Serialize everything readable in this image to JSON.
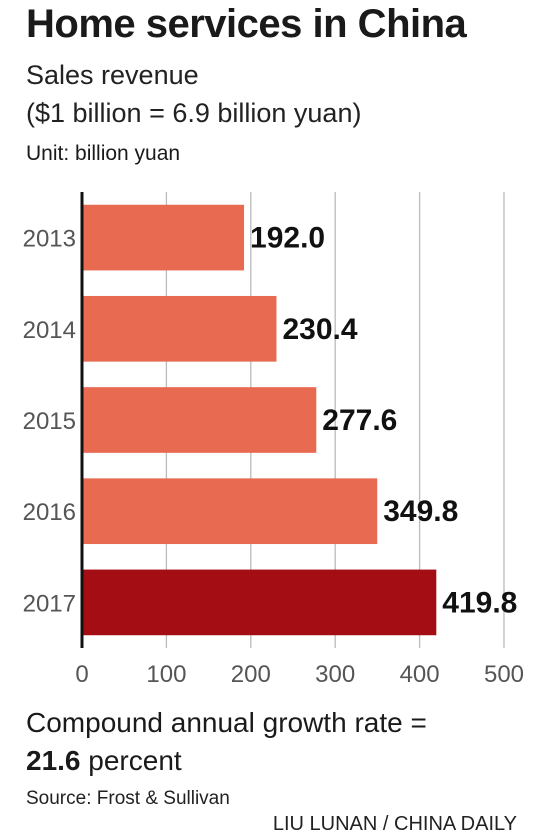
{
  "header": {
    "title": "Home services in China",
    "subtitle_line1": "Sales revenue",
    "subtitle_line2": "($1 billion = 6.9 billion yuan)",
    "unit": "Unit: billion yuan"
  },
  "chart_data": {
    "type": "bar",
    "orientation": "horizontal",
    "categories": [
      "2013",
      "2014",
      "2015",
      "2016",
      "2017"
    ],
    "values": [
      192.0,
      230.4,
      277.6,
      349.8,
      419.8
    ],
    "value_labels": [
      "192.0",
      "230.4",
      "277.6",
      "349.8",
      "419.8"
    ],
    "xticks": [
      0,
      100,
      200,
      300,
      400,
      500
    ],
    "xlim": [
      0,
      500
    ],
    "grid": "vertical",
    "legend": "none",
    "colors": {
      "bar": "#e86a50",
      "highlight": "#a50d14",
      "grid": "#bbbbbb",
      "axis": "#111111"
    },
    "highlight_index": 4
  },
  "footer": {
    "cagr_line1": "Compound annual growth rate =",
    "cagr_value": "21.6",
    "cagr_unit": " percent",
    "source": "Source: Frost & Sullivan",
    "credit": "LIU LUNAN / CHINA DAILY"
  }
}
